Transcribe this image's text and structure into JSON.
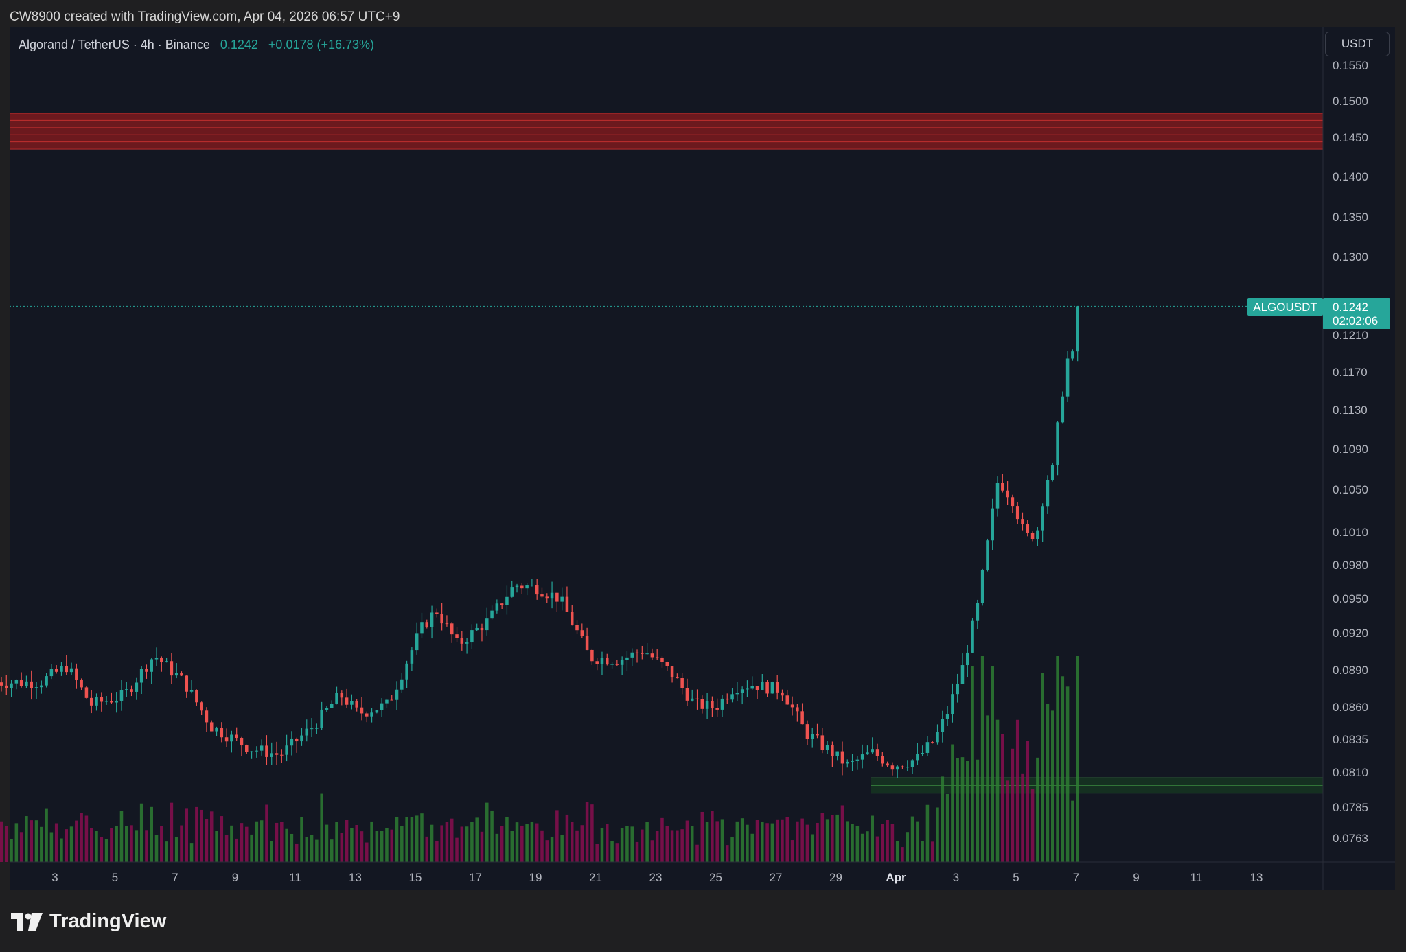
{
  "header": {
    "attribution": "CW8900 created with TradingView.com, Apr 04, 2026 06:57 UTC+9"
  },
  "legend": {
    "symbol": "Algorand / TetherUS · 4h · Binance",
    "price": "0.1242",
    "change": "+0.0178 (+16.73%)"
  },
  "unit_button": "USDT",
  "price_tag": {
    "symbol": "ALGOUSDT",
    "price": "0.1242",
    "countdown": "02:02:06"
  },
  "brand": "TradingView",
  "colors": {
    "up": "#26a69a",
    "down": "#ef5350",
    "background": "#131722",
    "frame": "#1f1f21",
    "resistance": "#b71c1c",
    "support": "#1b5e20"
  },
  "icons": {
    "brand_logo": "tradingview-logo-icon"
  },
  "chart_data": {
    "type": "candlestick",
    "title": "Algorand / TetherUS · 4h · Binance",
    "y_unit": "USDT",
    "y_ticks": [
      "0.1550",
      "0.1500",
      "0.1450",
      "0.1400",
      "0.1350",
      "0.1300",
      "0.1250",
      "0.1210",
      "0.1170",
      "0.1130",
      "0.1090",
      "0.1050",
      "0.1010",
      "0.0980",
      "0.0950",
      "0.0920",
      "0.0890",
      "0.0860",
      "0.0835",
      "0.0810",
      "0.0785",
      "0.0763"
    ],
    "x_ticks": [
      "3",
      "5",
      "7",
      "9",
      "11",
      "13",
      "15",
      "17",
      "19",
      "21",
      "23",
      "25",
      "27",
      "29",
      "Apr",
      "3",
      "5",
      "7",
      "9",
      "11",
      "13"
    ],
    "ylim": [
      0.0745,
      0.1565
    ],
    "grid": false,
    "zones": [
      {
        "name": "resistance",
        "from": 0.1435,
        "to": 0.1483
      },
      {
        "name": "support",
        "from": 0.0795,
        "to": 0.0806
      }
    ],
    "last_price": 0.1242,
    "keypoints": [
      {
        "day": 1.5,
        "close": 0.088
      },
      {
        "day": 2.4,
        "close": 0.0893
      },
      {
        "day": 3.2,
        "close": 0.0862
      },
      {
        "day": 4.3,
        "close": 0.0869
      },
      {
        "day": 5.3,
        "close": 0.0902
      },
      {
        "day": 6.3,
        "close": 0.088
      },
      {
        "day": 7.2,
        "close": 0.0845
      },
      {
        "day": 8.5,
        "close": 0.0828
      },
      {
        "day": 9.5,
        "close": 0.0823
      },
      {
        "day": 10.6,
        "close": 0.0845
      },
      {
        "day": 11.5,
        "close": 0.087
      },
      {
        "day": 12.1,
        "close": 0.0855
      },
      {
        "day": 13.1,
        "close": 0.0862
      },
      {
        "day": 14.2,
        "close": 0.0924
      },
      {
        "day": 14.7,
        "close": 0.094
      },
      {
        "day": 15.4,
        "close": 0.091
      },
      {
        "day": 16.4,
        "close": 0.093
      },
      {
        "day": 17.3,
        "close": 0.0962
      },
      {
        "day": 18.0,
        "close": 0.096
      },
      {
        "day": 18.8,
        "close": 0.095
      },
      {
        "day": 19.8,
        "close": 0.09
      },
      {
        "day": 20.8,
        "close": 0.0898
      },
      {
        "day": 21.6,
        "close": 0.0906
      },
      {
        "day": 22.5,
        "close": 0.0888
      },
      {
        "day": 23.3,
        "close": 0.0862
      },
      {
        "day": 24.0,
        "close": 0.086
      },
      {
        "day": 24.6,
        "close": 0.0876
      },
      {
        "day": 25.2,
        "close": 0.0878
      },
      {
        "day": 26.2,
        "close": 0.0874
      },
      {
        "day": 27.0,
        "close": 0.084
      },
      {
        "day": 27.8,
        "close": 0.0826
      },
      {
        "day": 28.4,
        "close": 0.0815
      },
      {
        "day": 29.2,
        "close": 0.0825
      },
      {
        "day": 29.9,
        "close": 0.0815
      },
      {
        "day": 30.7,
        "close": 0.082
      },
      {
        "day": 31.3,
        "close": 0.0835
      },
      {
        "day": 31.7,
        "close": 0.0855
      },
      {
        "day": 32.2,
        "close": 0.089
      },
      {
        "day": 32.7,
        "close": 0.094
      },
      {
        "day": 33.0,
        "close": 0.099
      },
      {
        "day": 33.4,
        "close": 0.106
      },
      {
        "day": 33.9,
        "close": 0.104
      },
      {
        "day": 34.3,
        "close": 0.1005
      },
      {
        "day": 34.7,
        "close": 0.101
      },
      {
        "day": 35.0,
        "close": 0.106
      },
      {
        "day": 35.2,
        "close": 0.1065
      },
      {
        "day": 35.5,
        "close": 0.114
      },
      {
        "day": 35.8,
        "close": 0.12
      },
      {
        "day": 35.95,
        "close": 0.1175
      },
      {
        "day": 36.2,
        "close": 0.1242
      }
    ]
  }
}
